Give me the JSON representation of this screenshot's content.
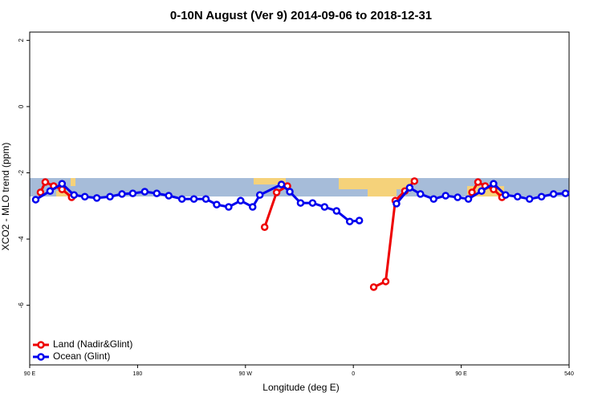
{
  "chart_data": {
    "type": "line",
    "title": "0-10N August (Ver 9)   2014-09-06 to 2018-12-31",
    "x_label": "Longitude (deg E)",
    "y_label": "XCO2 - MLO trend (ppm)",
    "xlim": [
      90,
      540
    ],
    "ylim": [
      -7.8,
      2.25
    ],
    "xticks": [
      {
        "value": 90,
        "label": "90 E"
      },
      180,
      {
        "value": 270,
        "label": "90 W"
      },
      {
        "value": 360,
        "label": "0"
      },
      {
        "value": 450,
        "label": "90 E"
      },
      540
    ],
    "yticks": [
      2,
      0,
      -2,
      -4,
      -6
    ],
    "legend": "bottom-left",
    "series": [
      {
        "name": "Land (Nadir&Glint)",
        "color": "#ee0000",
        "x": [
          99,
          103,
          110,
          117,
          125,
          200,
          286,
          296,
          305,
          340,
          377,
          387,
          395,
          403,
          411,
          425,
          459,
          464,
          470,
          477,
          484
        ],
        "values": [
          -2.59,
          -2.28,
          -2.4,
          -2.5,
          -2.74,
          null,
          -3.64,
          -2.59,
          -2.4,
          null,
          -5.45,
          -5.28,
          -2.84,
          -2.55,
          -2.25,
          null,
          -2.59,
          -2.28,
          -2.4,
          -2.5,
          -2.74
        ]
      },
      {
        "name": "Ocean (Glint)",
        "color": "#0000ee",
        "x": [
          95,
          107,
          117,
          127,
          136,
          146,
          157,
          167,
          176,
          186,
          196,
          206,
          217,
          227,
          237,
          246,
          256,
          266,
          276,
          282,
          300,
          307,
          316,
          326,
          336,
          346,
          357,
          365,
          380,
          396,
          407,
          416,
          427,
          437,
          447,
          456,
          467,
          477,
          487,
          497,
          507,
          517,
          527,
          537
        ],
        "values": [
          -2.81,
          -2.55,
          -2.33,
          -2.67,
          -2.72,
          -2.76,
          -2.72,
          -2.64,
          -2.62,
          -2.57,
          -2.62,
          -2.69,
          -2.79,
          -2.79,
          -2.79,
          -2.96,
          -3.03,
          -2.84,
          -3.03,
          -2.67,
          -2.35,
          -2.57,
          -2.91,
          -2.91,
          -3.03,
          -3.15,
          -3.47,
          -3.44,
          null,
          -2.93,
          -2.45,
          -2.64,
          -2.79,
          -2.69,
          -2.74,
          -2.79,
          -2.55,
          -2.33,
          -2.67,
          -2.72,
          -2.79,
          -2.72,
          -2.64,
          -2.62
        ]
      }
    ]
  }
}
